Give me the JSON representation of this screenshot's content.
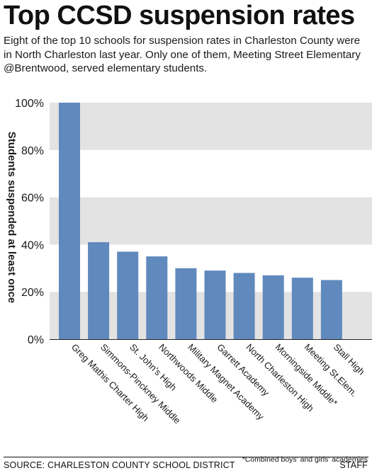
{
  "header": {
    "title": "Top CCSD suspension rates",
    "subtitle": "Eight of the top 10 schools for suspension rates in Charleston County were in North Charleston last year. Only one of them, Meeting Street Elementary @Brentwood, served elementary students."
  },
  "chart_data": {
    "type": "bar",
    "title": "",
    "xlabel": "",
    "ylabel": "Students suspended at least once",
    "categories": [
      "Greg Mathis Charter High",
      "Simmons-Pinckney Middle",
      "St. John's High",
      "Northwoods Middle",
      "Military Magnet Academy",
      "Garrett Academy",
      "North Charleston High",
      "Morningside Middle*",
      "Meeting St.Elem.",
      "Stall High"
    ],
    "values": [
      100,
      41,
      37,
      35,
      30,
      29,
      28,
      27,
      26,
      25
    ],
    "ylim": [
      0,
      100
    ],
    "yticks": [
      0,
      20,
      40,
      60,
      80,
      100
    ],
    "ytick_labels": [
      "0%",
      "20%",
      "40%",
      "60%",
      "80%",
      "100%"
    ],
    "grid": "alternating horizontal bands",
    "legend": "none",
    "bar_color": "#6089bd",
    "band_color": "#e3e3e3"
  },
  "footnote": "*Combined boys' and girls' academies",
  "footer": {
    "source": "SOURCE: CHARLESTON COUNTY SCHOOL DISTRICT",
    "credit": "STAFF"
  }
}
